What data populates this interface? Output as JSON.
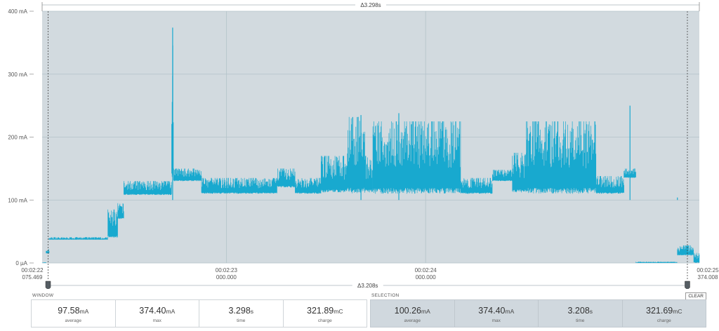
{
  "chart_data": {
    "type": "line",
    "y_ticks": [
      "400 mA",
      "300 mA",
      "200 mA",
      "100 mA",
      "0 µA"
    ],
    "y_tick_values": [
      400,
      300,
      200,
      100,
      0
    ],
    "ylim": [
      0,
      400
    ],
    "xlim": [
      0,
      3.298
    ],
    "x_ticks": [
      {
        "time": "00:02:22",
        "sub": "075.469",
        "t": 0
      },
      {
        "time": "00:02:23",
        "sub": "000.000",
        "t": 0.9245
      },
      {
        "time": "00:02:24",
        "sub": "000.000",
        "t": 1.9245
      },
      {
        "time": "00:02:25",
        "sub": "374.008",
        "t": 3.298
      }
    ],
    "window_delta": "Δ3.298s",
    "selection_delta": "Δ3.208s",
    "selection_range": [
      0.03,
      3.238
    ],
    "grid": true,
    "series": [
      {
        "color": "#18a9cf",
        "segments": [
          {
            "t0": 0.0,
            "t1": 0.02,
            "lo": 0,
            "hi": 1
          },
          {
            "t0": 0.02,
            "t1": 0.035,
            "lo": 15,
            "hi": 22
          },
          {
            "t0": 0.035,
            "t1": 0.33,
            "lo": 37,
            "hi": 41
          },
          {
            "t0": 0.33,
            "t1": 0.38,
            "lo": 40,
            "hi": 85
          },
          {
            "t0": 0.38,
            "t1": 0.41,
            "lo": 70,
            "hi": 95
          },
          {
            "t0": 0.41,
            "t1": 0.65,
            "lo": 108,
            "hi": 130
          },
          {
            "t0": 0.65,
            "t1": 0.66,
            "lo": 130,
            "hi": 374
          },
          {
            "t0": 0.66,
            "t1": 0.8,
            "lo": 130,
            "hi": 150
          },
          {
            "t0": 0.8,
            "t1": 1.18,
            "lo": 110,
            "hi": 135
          },
          {
            "t0": 1.18,
            "t1": 1.27,
            "lo": 120,
            "hi": 150
          },
          {
            "t0": 1.27,
            "t1": 1.4,
            "lo": 110,
            "hi": 135
          },
          {
            "t0": 1.4,
            "t1": 1.53,
            "lo": 112,
            "hi": 170
          },
          {
            "t0": 1.53,
            "t1": 1.62,
            "lo": 110,
            "hi": 232
          },
          {
            "t0": 1.62,
            "t1": 1.66,
            "lo": 112,
            "hi": 170
          },
          {
            "t0": 1.66,
            "t1": 2.1,
            "lo": 110,
            "hi": 225
          },
          {
            "t0": 2.1,
            "t1": 2.26,
            "lo": 110,
            "hi": 135
          },
          {
            "t0": 2.26,
            "t1": 2.36,
            "lo": 130,
            "hi": 148
          },
          {
            "t0": 2.36,
            "t1": 2.43,
            "lo": 112,
            "hi": 175
          },
          {
            "t0": 2.43,
            "t1": 2.78,
            "lo": 110,
            "hi": 225
          },
          {
            "t0": 2.78,
            "t1": 2.92,
            "lo": 110,
            "hi": 138
          },
          {
            "t0": 2.92,
            "t1": 2.98,
            "lo": 135,
            "hi": 150
          },
          {
            "t0": 2.98,
            "t1": 3.0,
            "lo": 0,
            "hi": 2
          },
          {
            "t0": 3.0,
            "t1": 3.188,
            "lo": 0,
            "hi": 2
          },
          {
            "t0": 3.188,
            "t1": 3.27,
            "lo": 12,
            "hi": 28
          },
          {
            "t0": 3.27,
            "t1": 3.298,
            "lo": 0,
            "hi": 16
          }
        ],
        "spikes": [
          {
            "t": 0.655,
            "v": 374
          },
          {
            "t": 2.95,
            "v": 250
          },
          {
            "t": 3.188,
            "v": 104
          },
          {
            "t": 1.6,
            "v": 235
          },
          {
            "t": 1.79,
            "v": 238
          }
        ]
      }
    ]
  },
  "window_panel": {
    "title": "WINDOW",
    "stats": [
      {
        "value": "97.58",
        "unit": "mA",
        "label": "average"
      },
      {
        "value": "374.40",
        "unit": "mA",
        "label": "max"
      },
      {
        "value": "3.298",
        "unit": "s",
        "label": "time"
      },
      {
        "value": "321.89",
        "unit": "mC",
        "label": "charge"
      }
    ]
  },
  "selection_panel": {
    "title": "SELECTION",
    "clear_label": "CLEAR",
    "stats": [
      {
        "value": "100.26",
        "unit": "mA",
        "label": "average"
      },
      {
        "value": "374.40",
        "unit": "mA",
        "label": "max"
      },
      {
        "value": "3.208",
        "unit": "s",
        "label": "time"
      },
      {
        "value": "321.69",
        "unit": "mC",
        "label": "charge"
      }
    ]
  },
  "colors": {
    "plot_background": "#d2dadf",
    "trace": "#18a9cf",
    "grid": "#b3c2ca",
    "marker": "#555d63"
  }
}
